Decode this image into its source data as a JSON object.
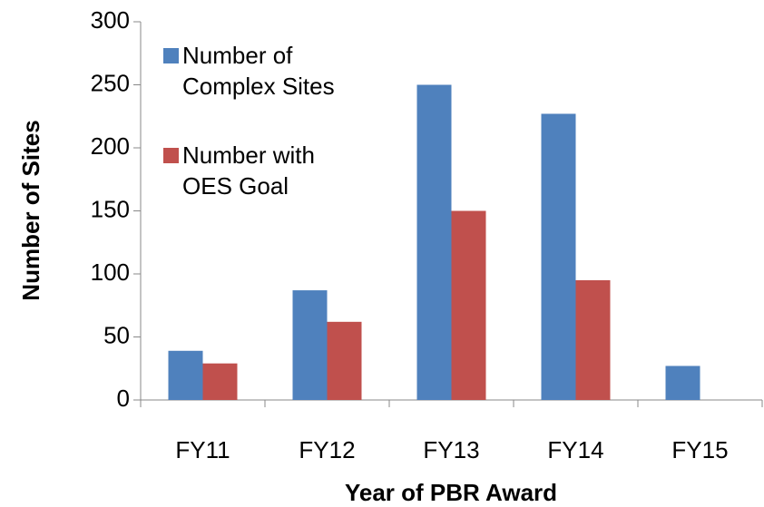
{
  "chart_data": {
    "type": "bar",
    "categories": [
      "FY11",
      "FY12",
      "FY13",
      "FY14",
      "FY15"
    ],
    "series": [
      {
        "name": "Number of Complex Sites",
        "color": "#4f81bd",
        "values": [
          39,
          87,
          250,
          227,
          27
        ]
      },
      {
        "name": "Number with OES Goal",
        "color": "#c0504d",
        "values": [
          29,
          62,
          150,
          95,
          null
        ]
      }
    ],
    "ylim": [
      0,
      300
    ],
    "yticks": [
      0,
      50,
      100,
      150,
      200,
      250,
      300
    ],
    "ylabel": "Number of Sites",
    "xlabel": "Year of PBR Award",
    "legend": "upper left"
  }
}
